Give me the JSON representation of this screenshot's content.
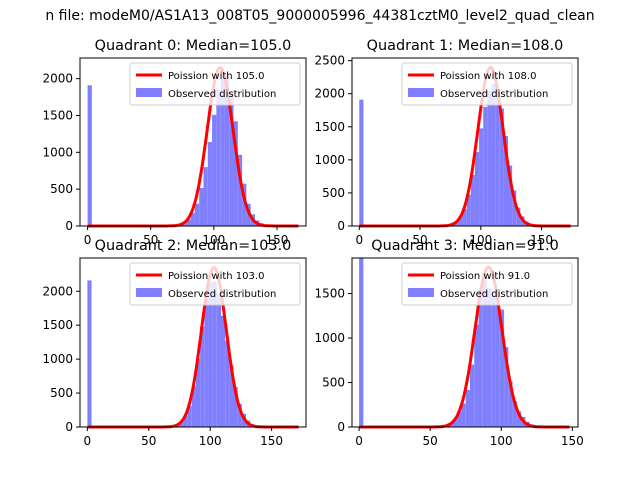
{
  "figure_title": "n file: modeM0/AS1A13_008T05_9000005996_44381cztM0_level2_quad_clean",
  "colors": {
    "poisson": "#ff0000",
    "observed": "#8080ff"
  },
  "chart_data": [
    {
      "type": "bar",
      "title": "Quadrant 0: Median=105.0",
      "median": 105.0,
      "xlim": [
        -6,
        173
      ],
      "ylim": [
        0,
        2280
      ],
      "xticks": [
        0,
        50,
        100,
        150
      ],
      "yticks": [
        0,
        500,
        1000,
        1500,
        2000
      ],
      "grid": false,
      "legend_position": "top-right",
      "series": [
        {
          "name": "Poission with 105.0",
          "kind": "line",
          "mean": 105.0,
          "peak": 2150
        },
        {
          "name": "Observed distribution",
          "kind": "histogram",
          "zero_bin": 1910,
          "bin_width": 3.4,
          "peak_center": 107
        }
      ]
    },
    {
      "type": "bar",
      "title": "Quadrant 1: Median=108.0",
      "median": 108.0,
      "xlim": [
        -6,
        180
      ],
      "ylim": [
        0,
        2540
      ],
      "xticks": [
        0,
        50,
        100,
        150
      ],
      "yticks": [
        0,
        500,
        1000,
        1500,
        2000,
        2500
      ],
      "grid": false,
      "legend_position": "top-right",
      "series": [
        {
          "name": "Poission with 108.0",
          "kind": "line",
          "mean": 108.0,
          "peak": 2400
        },
        {
          "name": "Observed distribution",
          "kind": "histogram",
          "zero_bin": 1910,
          "bin_width": 3.4,
          "peak_center": 109
        }
      ]
    },
    {
      "type": "bar",
      "title": "Quadrant 2: Median=103.0",
      "median": 103.0,
      "xlim": [
        -6,
        178
      ],
      "ylim": [
        0,
        2490
      ],
      "xticks": [
        0,
        50,
        100,
        150
      ],
      "yticks": [
        0,
        500,
        1000,
        1500,
        2000
      ],
      "grid": false,
      "legend_position": "top-right",
      "series": [
        {
          "name": "Poission with 103.0",
          "kind": "line",
          "mean": 103.0,
          "peak": 2350
        },
        {
          "name": "Observed distribution",
          "kind": "histogram",
          "zero_bin": 2160,
          "bin_width": 3.4,
          "peak_center": 104
        }
      ]
    },
    {
      "type": "bar",
      "title": "Quadrant 3: Median=91.0",
      "median": 91.0,
      "xlim": [
        -5,
        154
      ],
      "ylim": [
        0,
        1900
      ],
      "xticks": [
        0,
        50,
        100,
        150
      ],
      "yticks": [
        0,
        500,
        1000,
        1500
      ],
      "grid": false,
      "legend_position": "top-right",
      "series": [
        {
          "name": "Poission with 91.0",
          "kind": "line",
          "mean": 91.0,
          "peak": 1800
        },
        {
          "name": "Observed distribution",
          "kind": "histogram",
          "zero_bin": 1900,
          "bin_width": 3.0,
          "peak_center": 92
        }
      ]
    }
  ]
}
